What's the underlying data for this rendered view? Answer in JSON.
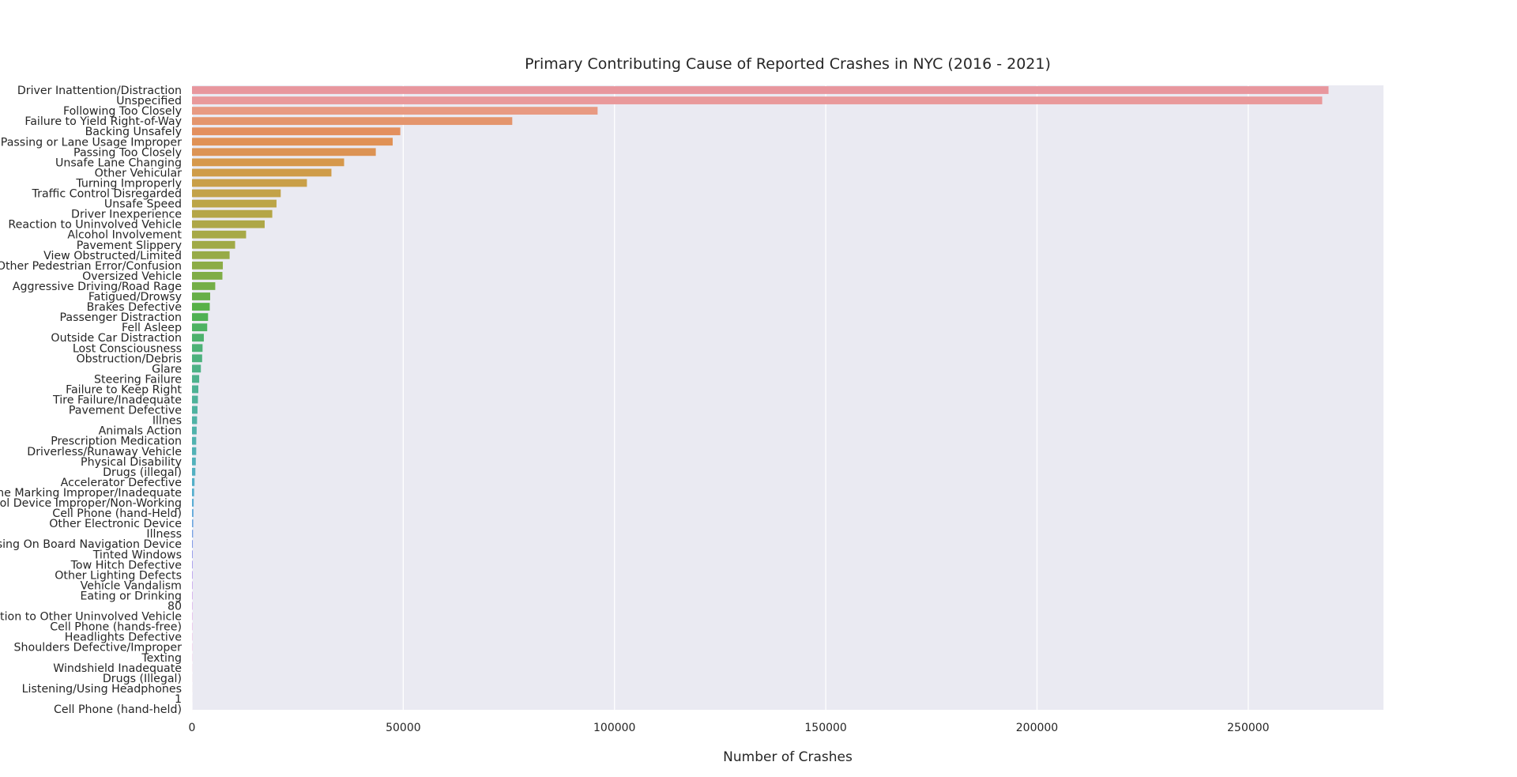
{
  "chart_data": {
    "type": "bar",
    "orientation": "horizontal",
    "title": "Primary Contributing Cause of Reported Crashes in NYC (2016 - 2021)",
    "xlabel": "Number of Crashes",
    "ylabel": "",
    "xlim": [
      0,
      282000
    ],
    "x_ticks": [
      0,
      50000,
      100000,
      150000,
      200000,
      250000
    ],
    "x_tick_labels": [
      "0",
      "50000",
      "100000",
      "150000",
      "200000",
      "250000"
    ],
    "grid": true,
    "categories": [
      "Driver Inattention/Distraction",
      "Unspecified",
      "Following Too Closely",
      "Failure to Yield Right-of-Way",
      "Backing Unsafely",
      "Passing or Lane Usage Improper",
      "Passing Too Closely",
      "Unsafe Lane Changing",
      "Other Vehicular",
      "Turning Improperly",
      "Traffic Control Disregarded",
      "Unsafe Speed",
      "Driver Inexperience",
      "Reaction to Uninvolved Vehicle",
      "Alcohol Involvement",
      "Pavement Slippery",
      "View Obstructed/Limited",
      "Other Pedestrian Error/Confusion",
      "Oversized Vehicle",
      "Aggressive Driving/Road Rage",
      "Fatigued/Drowsy",
      "Brakes Defective",
      "Passenger Distraction",
      "Fell Asleep",
      "Outside Car Distraction",
      "Lost Consciousness",
      "Obstruction/Debris",
      "Glare",
      "Steering Failure",
      "Failure to Keep Right",
      "Tire Failure/Inadequate",
      "Pavement Defective",
      "Illnes",
      "Animals Action",
      "Prescription Medication",
      "Driverless/Runaway Vehicle",
      "Physical Disability",
      "Drugs (illegal)",
      "Accelerator Defective",
      "Lane Marking Improper/Inadequate",
      "Traffic Control Device Improper/Non-Working",
      "Cell Phone (hand-Held)",
      "Other Electronic Device",
      "Illness",
      "Using On Board Navigation Device",
      "Tinted Windows",
      "Tow Hitch Defective",
      "Other Lighting Defects",
      "Vehicle Vandalism",
      "Eating or Drinking",
      "80",
      "Reaction to Other Uninvolved Vehicle",
      "Cell Phone (hands-free)",
      "Headlights Defective",
      "Shoulders Defective/Improper",
      "Texting",
      "Windshield Inadequate",
      "Drugs (Illegal)",
      "Listening/Using Headphones",
      "1",
      "Cell Phone (hand-held)"
    ],
    "values": [
      269000,
      267500,
      96000,
      75800,
      49300,
      47500,
      43500,
      36000,
      33000,
      27200,
      21000,
      20000,
      19000,
      17200,
      12800,
      10200,
      8900,
      7300,
      7200,
      5500,
      4300,
      4200,
      3800,
      3600,
      2800,
      2500,
      2400,
      2100,
      1700,
      1500,
      1400,
      1300,
      1200,
      1100,
      1000,
      1000,
      900,
      800,
      600,
      500,
      400,
      350,
      300,
      250,
      200,
      170,
      150,
      130,
      110,
      100,
      80,
      70,
      60,
      50,
      40,
      30,
      20,
      15,
      10,
      5,
      3
    ],
    "colors": [
      "#e8969d",
      "#e9999b",
      "#e89a82",
      "#e4956d",
      "#e38f5e",
      "#e09155",
      "#dc9354",
      "#d6984b",
      "#cf9c49",
      "#c99f48",
      "#c3a248",
      "#bca547",
      "#b5a647",
      "#aea747",
      "#a7a947",
      "#a0aa47",
      "#97ab47",
      "#8cac47",
      "#80ad47",
      "#74ae47",
      "#67af48",
      "#57b148",
      "#4fb153",
      "#4db262",
      "#4db26d",
      "#4db276",
      "#4db27e",
      "#4db286",
      "#4eb28d",
      "#4eb294",
      "#4fb29a",
      "#4fb2a0",
      "#50b2a6",
      "#50b2ab",
      "#51b2b0",
      "#52b1b6",
      "#52b1bc",
      "#53b0c2",
      "#53afc8",
      "#55aece",
      "#5aacd4",
      "#62a9da",
      "#6ca5df",
      "#78a1e3",
      "#859ce7",
      "#9297ea",
      "#9f92ec",
      "#ac8cec",
      "#b787ea",
      "#c182e7",
      "#ca7de3",
      "#d379de",
      "#da77d8",
      "#e076d1",
      "#e478ca",
      "#e77bc2",
      "#e97fb9",
      "#ea83b1",
      "#ea88aa",
      "#e98ca3",
      "#e8909e"
    ]
  }
}
